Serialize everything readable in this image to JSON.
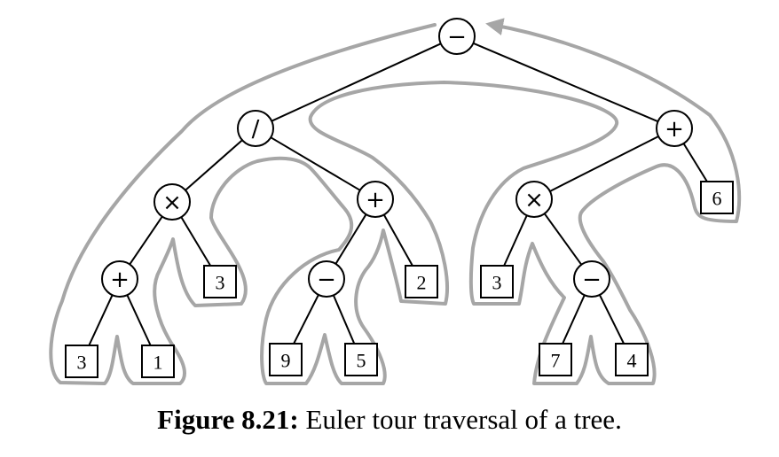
{
  "diagram": {
    "nodes": [
      {
        "id": "n1",
        "label": "−",
        "shape": "circle"
      },
      {
        "id": "n2",
        "label": "/",
        "shape": "circle"
      },
      {
        "id": "n3",
        "label": "+",
        "shape": "circle"
      },
      {
        "id": "n4",
        "label": "×",
        "shape": "circle"
      },
      {
        "id": "n5",
        "label": "+",
        "shape": "circle"
      },
      {
        "id": "n6",
        "label": "×",
        "shape": "circle"
      },
      {
        "id": "n7",
        "label": "6",
        "shape": "box"
      },
      {
        "id": "n8",
        "label": "+",
        "shape": "circle"
      },
      {
        "id": "n9",
        "label": "3",
        "shape": "box"
      },
      {
        "id": "n10",
        "label": "−",
        "shape": "circle"
      },
      {
        "id": "n11",
        "label": "2",
        "shape": "box"
      },
      {
        "id": "n12",
        "label": "3",
        "shape": "box"
      },
      {
        "id": "n13",
        "label": "−",
        "shape": "circle"
      },
      {
        "id": "n14",
        "label": "3",
        "shape": "box"
      },
      {
        "id": "n15",
        "label": "1",
        "shape": "box"
      },
      {
        "id": "n16",
        "label": "9",
        "shape": "box"
      },
      {
        "id": "n17",
        "label": "5",
        "shape": "box"
      },
      {
        "id": "n18",
        "label": "7",
        "shape": "box"
      },
      {
        "id": "n19",
        "label": "4",
        "shape": "box"
      }
    ],
    "edges": [
      [
        "n1",
        "n2"
      ],
      [
        "n1",
        "n3"
      ],
      [
        "n2",
        "n4"
      ],
      [
        "n2",
        "n5"
      ],
      [
        "n3",
        "n6"
      ],
      [
        "n3",
        "n7"
      ],
      [
        "n4",
        "n8"
      ],
      [
        "n4",
        "n9"
      ],
      [
        "n5",
        "n10"
      ],
      [
        "n5",
        "n11"
      ],
      [
        "n6",
        "n12"
      ],
      [
        "n6",
        "n13"
      ],
      [
        "n8",
        "n14"
      ],
      [
        "n8",
        "n15"
      ],
      [
        "n10",
        "n16"
      ],
      [
        "n10",
        "n17"
      ],
      [
        "n13",
        "n18"
      ],
      [
        "n13",
        "n19"
      ]
    ]
  },
  "caption": {
    "label": "Figure 8.21:",
    "text": " Euler tour traversal of a tree."
  }
}
